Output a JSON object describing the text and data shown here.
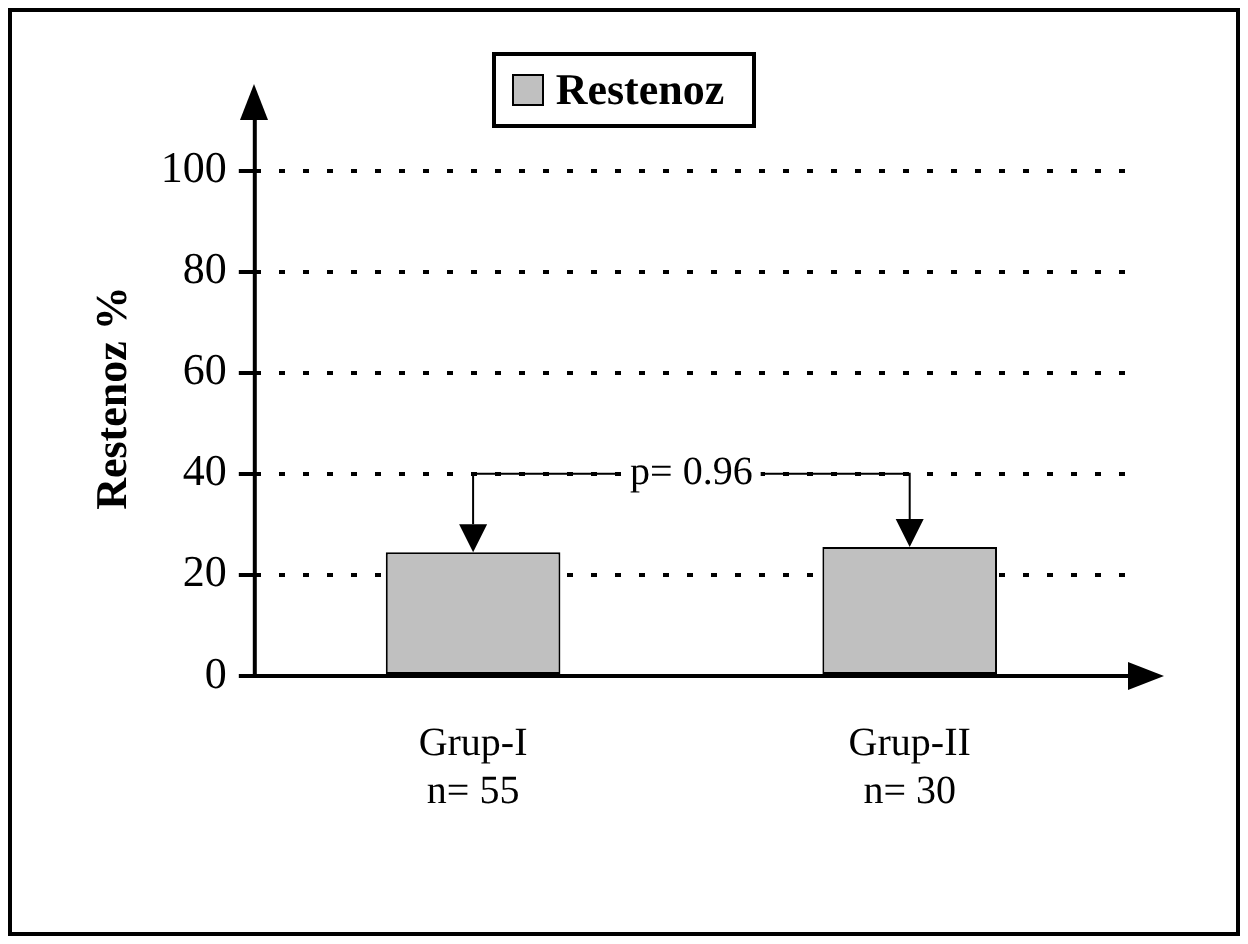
{
  "chart_data": {
    "type": "bar",
    "ylabel": "Restenoz %",
    "categories": [
      "Grup-I\nn= 55",
      "Grup-II\nn= 30"
    ],
    "series": [
      {
        "name": "Restenoz",
        "color": "#c0c0c0",
        "values": [
          24.5,
          25.5
        ]
      }
    ],
    "ylim": [
      0,
      110
    ],
    "yticks": [
      0,
      20,
      40,
      60,
      80,
      100
    ],
    "grid": "y",
    "legend": "top",
    "annotations": [
      "p= 0.96"
    ]
  }
}
